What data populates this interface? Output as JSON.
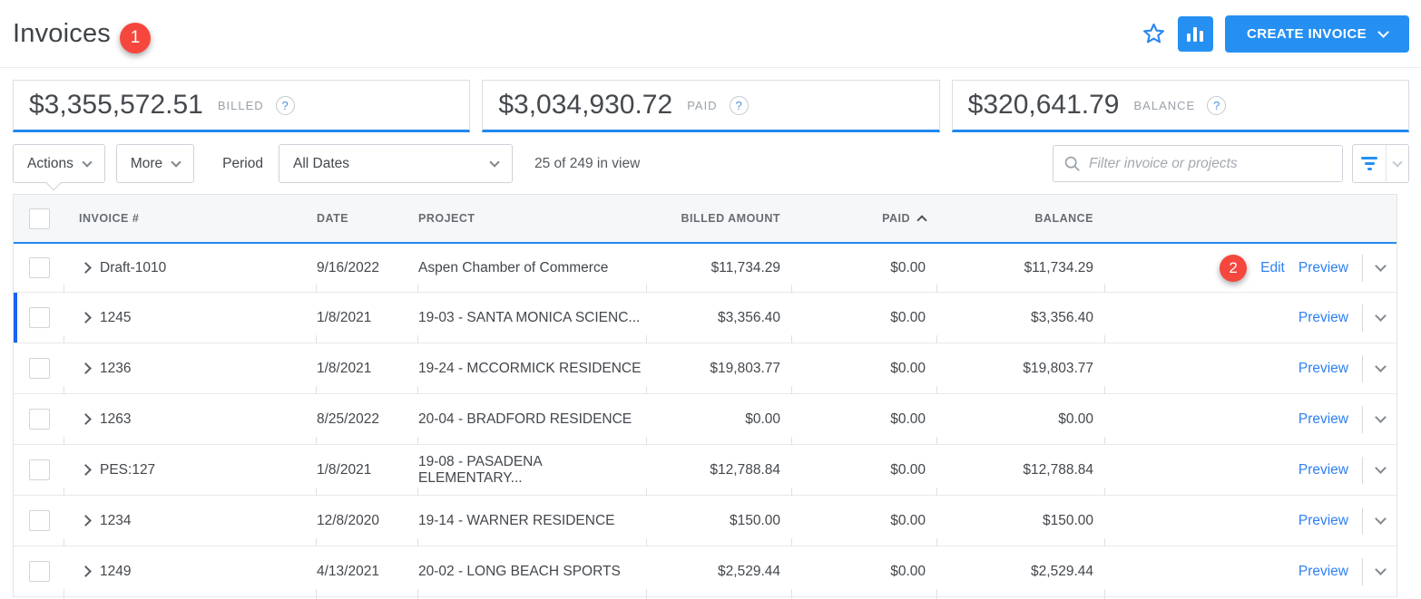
{
  "header": {
    "title": "Invoices",
    "notification_badge": "1",
    "favorite_icon": "star-outline",
    "analytics_icon": "bar-chart",
    "create_button_label": "CREATE INVOICE"
  },
  "summary_cards": [
    {
      "amount": "$3,355,572.51",
      "label": "BILLED",
      "help_icon": "?"
    },
    {
      "amount": "$3,034,930.72",
      "label": "PAID",
      "help_icon": "?"
    },
    {
      "amount": "$320,641.79",
      "label": "BALANCE",
      "help_icon": "?"
    }
  ],
  "toolbar": {
    "actions_label": "Actions",
    "more_label": "More",
    "period_label": "Period",
    "period_value": "All Dates",
    "results_count": "25 of 249 in view",
    "search_placeholder": "Filter invoice or projects",
    "search_icon": "magnifier",
    "filter_icon": "filter-lines"
  },
  "table": {
    "columns": [
      "INVOICE #",
      "DATE",
      "PROJECT",
      "BILLED AMOUNT",
      "PAID",
      "BALANCE"
    ],
    "sorted_by": "PAID",
    "sort_direction": "ascending",
    "edit_label": "Edit",
    "preview_label": "Preview",
    "rows": [
      {
        "invoice_number": "Draft-1010",
        "date": "9/16/2022",
        "project": "Aspen Chamber of Commerce",
        "billed_amount": "$11,734.29",
        "paid": "$0.00",
        "balance": "$11,734.29",
        "badge": "2",
        "show_edit": true,
        "highlight": "top-line"
      },
      {
        "invoice_number": "1245",
        "date": "1/8/2021",
        "project": "19-03 - SANTA MONICA SCIENC...",
        "billed_amount": "$3,356.40",
        "paid": "$0.00",
        "balance": "$3,356.40",
        "highlight": "left-bar"
      },
      {
        "invoice_number": "1236",
        "date": "1/8/2021",
        "project": "19-24 - MCCORMICK RESIDENCE",
        "billed_amount": "$19,803.77",
        "paid": "$0.00",
        "balance": "$19,803.77"
      },
      {
        "invoice_number": "1263",
        "date": "8/25/2022",
        "project": "20-04 - BRADFORD RESIDENCE",
        "billed_amount": "$0.00",
        "paid": "$0.00",
        "balance": "$0.00"
      },
      {
        "invoice_number": "PES:127",
        "date": "1/8/2021",
        "project": "19-08 - PASADENA ELEMENTARY...",
        "billed_amount": "$12,788.84",
        "paid": "$0.00",
        "balance": "$12,788.84"
      },
      {
        "invoice_number": "1234",
        "date": "12/8/2020",
        "project": "19-14 - WARNER RESIDENCE",
        "billed_amount": "$150.00",
        "paid": "$0.00",
        "balance": "$150.00"
      },
      {
        "invoice_number": "1249",
        "date": "4/13/2021",
        "project": "20-02 - LONG BEACH SPORTS",
        "billed_amount": "$2,529.44",
        "paid": "$0.00",
        "balance": "$2,529.44"
      }
    ]
  },
  "colors": {
    "accent_blue": "#2590f2",
    "selection_blue": "#2188f0",
    "left_bar_blue": "#1d62f2",
    "link_blue": "#2e80f0",
    "badge_red": "#f5473d"
  }
}
